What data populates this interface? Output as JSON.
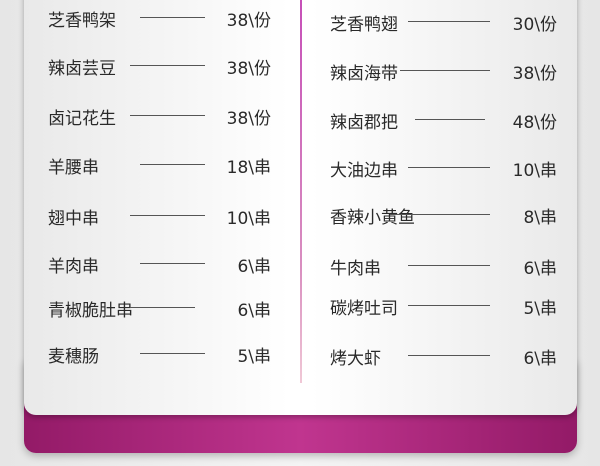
{
  "colors": {
    "accent": "#b02a82",
    "text": "#2a2a2a"
  },
  "left": [
    {
      "name": "芝香鸭架",
      "price": "38\\份"
    },
    {
      "name": "辣卤芸豆",
      "price": "38\\份"
    },
    {
      "name": "卤记花生",
      "price": "38\\份"
    },
    {
      "name": "羊腰串",
      "price": "18\\串"
    },
    {
      "name": "翅中串",
      "price": "10\\串"
    },
    {
      "name": "羊肉串",
      "price": "6\\串"
    },
    {
      "name": "青椒脆肚串",
      "price": "6\\串"
    },
    {
      "name": "麦穗肠",
      "price": "5\\串"
    }
  ],
  "right": [
    {
      "name": "芝香鸭翅",
      "price": "30\\份"
    },
    {
      "name": "辣卤海带",
      "price": "38\\份"
    },
    {
      "name": "辣卤郡把",
      "price": "48\\份"
    },
    {
      "name": "大油边串",
      "price": "10\\串"
    },
    {
      "name": "香辣小黄鱼",
      "price": "8\\串"
    },
    {
      "name": "牛肉串",
      "price": "6\\串"
    },
    {
      "name": "碳烤吐司",
      "price": "5\\串"
    },
    {
      "name": "烤大虾",
      "price": "6\\串"
    }
  ]
}
